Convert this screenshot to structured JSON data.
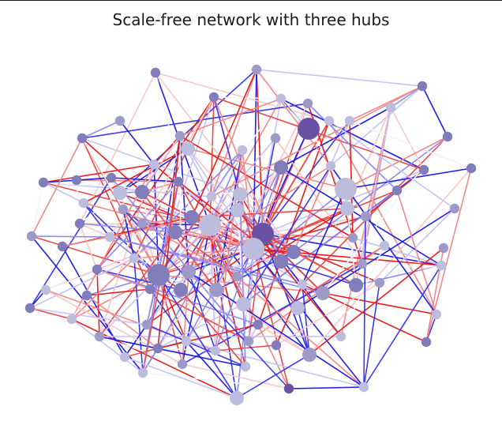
{
  "title": "Scale-free network with three hubs",
  "colors": {
    "node_palette": [
      "#6a51a3",
      "#807dba",
      "#9e9ac8",
      "#bcbddc"
    ],
    "edge_blue": "#1f1fe6",
    "edge_red": "#e61f1f",
    "edge_white": "#f4f4fb"
  }
}
